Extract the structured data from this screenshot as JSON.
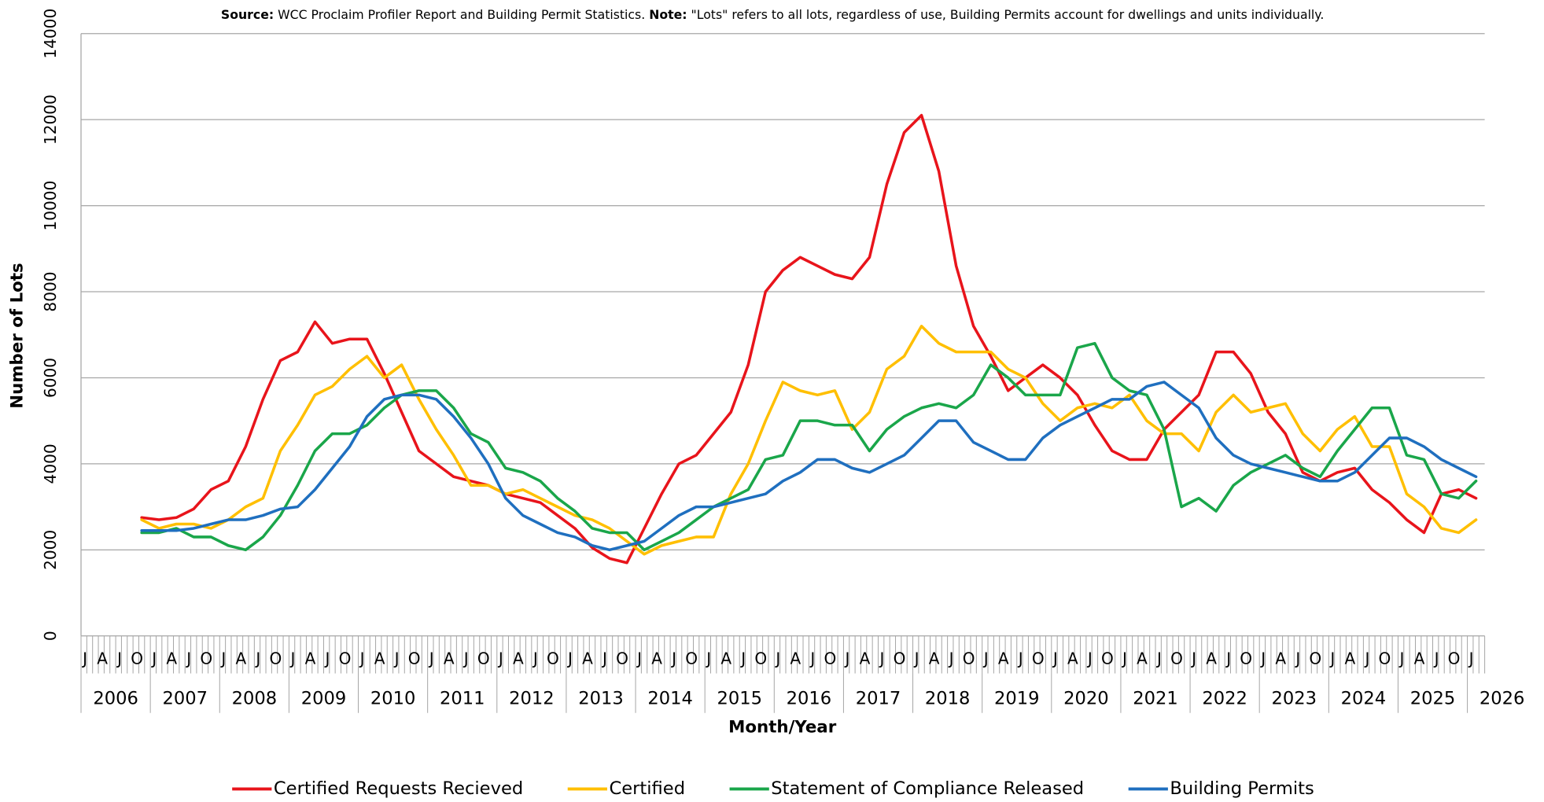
{
  "chart_data": {
    "type": "line",
    "source_label": "Source:",
    "source_text": "WCC Proclaim Profiler Report and Building Permit Statistics.",
    "note_label": "Note:",
    "note_text": "\"Lots\" refers to all lots, regardless of use, Building Permits account for dwellings and units individually.",
    "ylabel": "Number of Lots",
    "xlabel": "Month/Year",
    "ylim": [
      0,
      14000
    ],
    "yticks": [
      0,
      2000,
      4000,
      6000,
      8000,
      10000,
      12000,
      14000
    ],
    "grid": true,
    "legend": "bottom",
    "categories": [
      "J",
      "A",
      "J",
      "O",
      "J",
      "A",
      "J",
      "O",
      "J",
      "A",
      "J",
      "O",
      "J",
      "A",
      "J",
      "O",
      "J",
      "A",
      "J",
      "O",
      "J",
      "A",
      "J",
      "O",
      "J",
      "A",
      "J",
      "O",
      "J",
      "A",
      "J",
      "O",
      "J",
      "A",
      "J",
      "O",
      "J",
      "A",
      "J",
      "O",
      "J",
      "A",
      "J",
      "O",
      "J",
      "A",
      "J",
      "O",
      "J",
      "A",
      "J",
      "O",
      "J",
      "A",
      "J",
      "O",
      "J",
      "A",
      "J",
      "O",
      "J",
      "A",
      "J",
      "O",
      "J",
      "A",
      "J",
      "O",
      "J",
      "A",
      "J",
      "O",
      "J",
      "A",
      "J",
      "O",
      "J",
      "A",
      "J",
      "O",
      "J"
    ],
    "years": [
      "2006",
      "2007",
      "2008",
      "2009",
      "2010",
      "2011",
      "2012",
      "2013",
      "2014",
      "2015",
      "2016",
      "2017",
      "2018",
      "2019",
      "2020",
      "2021",
      "2022",
      "2023",
      "2024",
      "2025",
      "2026"
    ],
    "series": [
      {
        "name": "Certified Requests Recieved",
        "color": "#e8141b",
        "values": [
          null,
          null,
          null,
          2750,
          2700,
          2750,
          2950,
          3400,
          3600,
          4400,
          5500,
          6400,
          6600,
          7300,
          6800,
          6900,
          6900,
          6100,
          5200,
          4300,
          4000,
          3700,
          3600,
          3500,
          3300,
          3200,
          3100,
          2800,
          2500,
          2050,
          1800,
          1700,
          2500,
          3300,
          4000,
          4200,
          4700,
          5200,
          6300,
          8000,
          8500,
          8800,
          8600,
          8400,
          8300,
          8800,
          10500,
          11700,
          12100,
          10800,
          8600,
          7200,
          6500,
          5700,
          6000,
          6300,
          6000,
          5600,
          4900,
          4300,
          4100,
          4100,
          4800,
          5200,
          5600,
          6600,
          6600,
          6100,
          5200,
          4700,
          3800,
          3600,
          3800,
          3900,
          3400,
          3100,
          2700,
          2400,
          3300,
          3400,
          3200
        ]
      },
      {
        "name": "Certified",
        "color": "#ffbf00",
        "values": [
          null,
          null,
          null,
          2700,
          2500,
          2600,
          2600,
          2500,
          2700,
          3000,
          3200,
          4300,
          4900,
          5600,
          5800,
          6200,
          6500,
          6000,
          6300,
          5500,
          4800,
          4200,
          3500,
          3500,
          3300,
          3400,
          3200,
          3000,
          2800,
          2700,
          2500,
          2200,
          1900,
          2100,
          2200,
          2300,
          2300,
          3300,
          4000,
          5000,
          5900,
          5700,
          5600,
          5700,
          4800,
          5200,
          6200,
          6500,
          7200,
          6800,
          6600,
          6600,
          6600,
          6200,
          6000,
          5400,
          5000,
          5300,
          5400,
          5300,
          5600,
          5000,
          4700,
          4700,
          4300,
          5200,
          5600,
          5200,
          5300,
          5400,
          4700,
          4300,
          4800,
          5100,
          4400,
          4400,
          3300,
          3000,
          2500,
          2400,
          2700
        ]
      },
      {
        "name": "Statement of Compliance Released",
        "color": "#1aa64a",
        "values": [
          null,
          null,
          null,
          2400,
          2400,
          2500,
          2300,
          2300,
          2100,
          2000,
          2300,
          2800,
          3500,
          4300,
          4700,
          4700,
          4900,
          5300,
          5600,
          5700,
          5700,
          5300,
          4700,
          4500,
          3900,
          3800,
          3600,
          3200,
          2900,
          2500,
          2400,
          2400,
          2000,
          2200,
          2400,
          2700,
          3000,
          3200,
          3400,
          4100,
          4200,
          5000,
          5000,
          4900,
          4900,
          4300,
          4800,
          5100,
          5300,
          5400,
          5300,
          5600,
          6300,
          6000,
          5600,
          5600,
          5600,
          6700,
          6800,
          6000,
          5700,
          5600,
          4800,
          3000,
          3200,
          2900,
          3500,
          3800,
          4000,
          4200,
          3900,
          3700,
          4300,
          4800,
          5300,
          5300,
          4200,
          4100,
          3300,
          3200,
          3600
        ]
      },
      {
        "name": "Building Permits",
        "color": "#1f6fbf",
        "values": [
          null,
          null,
          null,
          2450,
          2450,
          2450,
          2500,
          2600,
          2700,
          2700,
          2800,
          2950,
          3000,
          3400,
          3900,
          4400,
          5100,
          5500,
          5600,
          5600,
          5500,
          5100,
          4600,
          4000,
          3200,
          2800,
          2600,
          2400,
          2300,
          2100,
          2000,
          2100,
          2200,
          2500,
          2800,
          3000,
          3000,
          3100,
          3200,
          3300,
          3600,
          3800,
          4100,
          4100,
          3900,
          3800,
          4000,
          4200,
          4600,
          5000,
          5000,
          4500,
          4300,
          4100,
          4100,
          4600,
          4900,
          5100,
          5300,
          5500,
          5500,
          5800,
          5900,
          5600,
          5300,
          4600,
          4200,
          4000,
          3900,
          3800,
          3700,
          3600,
          3600,
          3800,
          4200,
          4600,
          4600,
          4400,
          4100,
          3900,
          3700
        ]
      }
    ]
  }
}
